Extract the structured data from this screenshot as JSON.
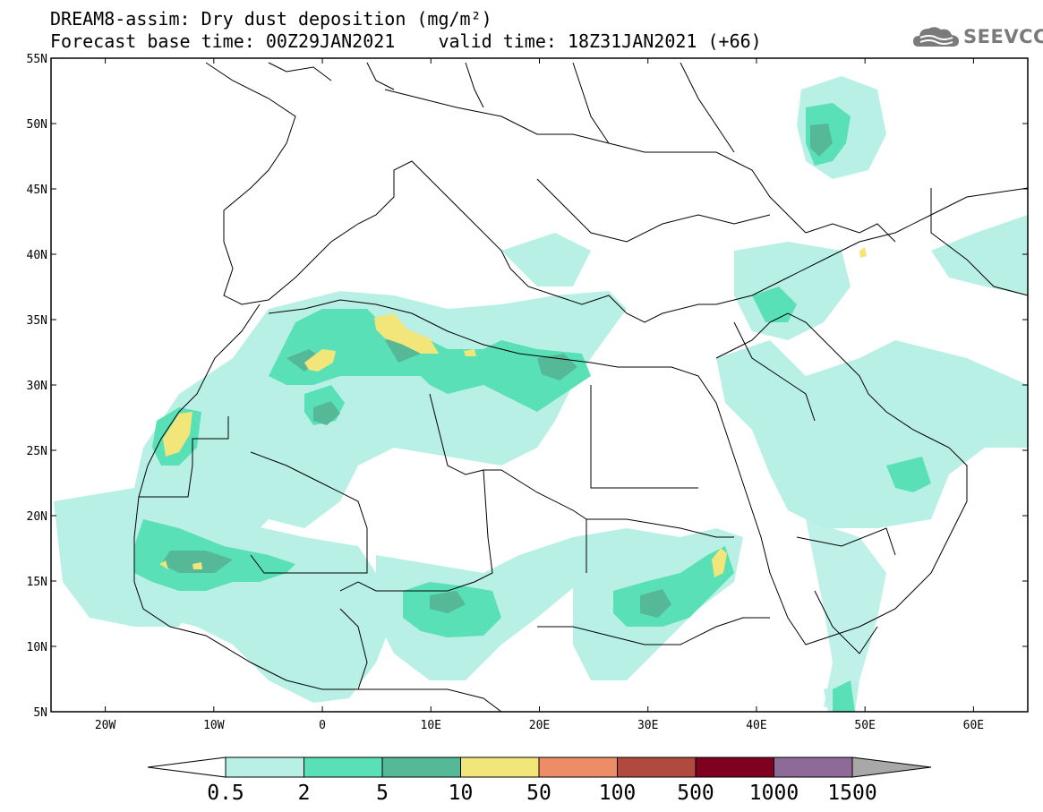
{
  "header": {
    "title_line1": "DREAM8-assim: Dry dust deposition (mg/m²)",
    "title_line2": "Forecast base time: 00Z29JAN2021    valid time: 18Z31JAN2021 (+66)"
  },
  "logo": {
    "text": "SEEVCCC",
    "icon": "cloud-logo-icon"
  },
  "map": {
    "lon_range": [
      -25,
      65
    ],
    "lat_range": [
      5,
      55
    ],
    "lat_labels": [
      "5N",
      "10N",
      "15N",
      "20N",
      "25N",
      "30N",
      "35N",
      "40N",
      "45N",
      "50N",
      "55N"
    ],
    "lon_labels": [
      "20W",
      "10W",
      "0",
      "10E",
      "20E",
      "30E",
      "40E",
      "50E",
      "60E"
    ]
  },
  "colorbar": {
    "levels": [
      "0.5",
      "2",
      "5",
      "10",
      "50",
      "100",
      "500",
      "1000",
      "1500"
    ],
    "colors": [
      "#ffffff",
      "#b8f0e6",
      "#5ae0b6",
      "#55b896",
      "#f2e67a",
      "#ee8c68",
      "#b04a3e",
      "#800020",
      "#8e6a98",
      "#a8a8a8"
    ]
  }
}
